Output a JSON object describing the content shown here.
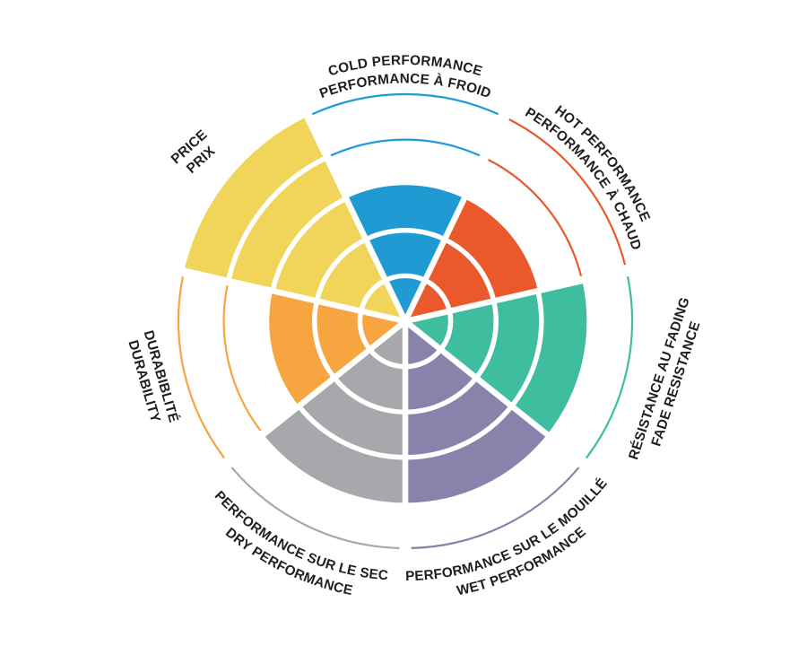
{
  "figure": {
    "description": "Brake/tire product rating wheel: 7 equal sectors, filled radius encodes rating out of 5; unreached levels are drawn as thin colored arcs; bilingual labels around the wheel.",
    "background_color": "#ffffff",
    "text_color": "#221e1f"
  },
  "chart_data": {
    "type": "pie",
    "variant": "polar rose / coxcomb rating wheel (7 equal-angle sectors, radius = rating level)",
    "title": "",
    "max_rating": 5,
    "levels": [
      1,
      2,
      3,
      4,
      5
    ],
    "encoding_note": "Filled wedge extends to the rating level ring; remaining levels shown as thin arcs in the sector color; white concentric ring dividers cross each filled wedge.",
    "legend_position": "labels placed radially around wheel",
    "values": [
      3,
      3,
      4,
      4,
      4,
      3,
      5
    ],
    "categories": [
      {
        "id": "cold-performance",
        "lines": [
          "COLD PERFORMANCE",
          "PERFORMANCE À FROID"
        ],
        "rating": 3,
        "color": "#1f9ad3"
      },
      {
        "id": "hot-performance",
        "lines": [
          "HOT PERFORMANCE",
          "PERFORMANCE À CHAUD"
        ],
        "rating": 3,
        "color": "#e9592c"
      },
      {
        "id": "fade-resistance",
        "lines": [
          "RÉSISTANCE AU FADING",
          "FADE RESISTANCE"
        ],
        "rating": 4,
        "color": "#3ebd9f"
      },
      {
        "id": "wet-performance",
        "lines": [
          "PERFORMANCE SUR LE MOUILLÉ",
          "WET PERFORMANCE"
        ],
        "rating": 4,
        "color": "#8883ab"
      },
      {
        "id": "dry-performance",
        "lines": [
          "PERFORMANCE SUR LE SEC",
          "DRY PERFORMANCE"
        ],
        "rating": 4,
        "color": "#a6a8ab"
      },
      {
        "id": "durability",
        "lines": [
          "DURABIBLITÉ",
          "DURABILITY"
        ],
        "rating": 3,
        "color": "#f7a540"
      },
      {
        "id": "price",
        "lines": [
          "PRICE",
          "PRIX"
        ],
        "rating": 5,
        "color": "#f1d55a"
      }
    ]
  }
}
